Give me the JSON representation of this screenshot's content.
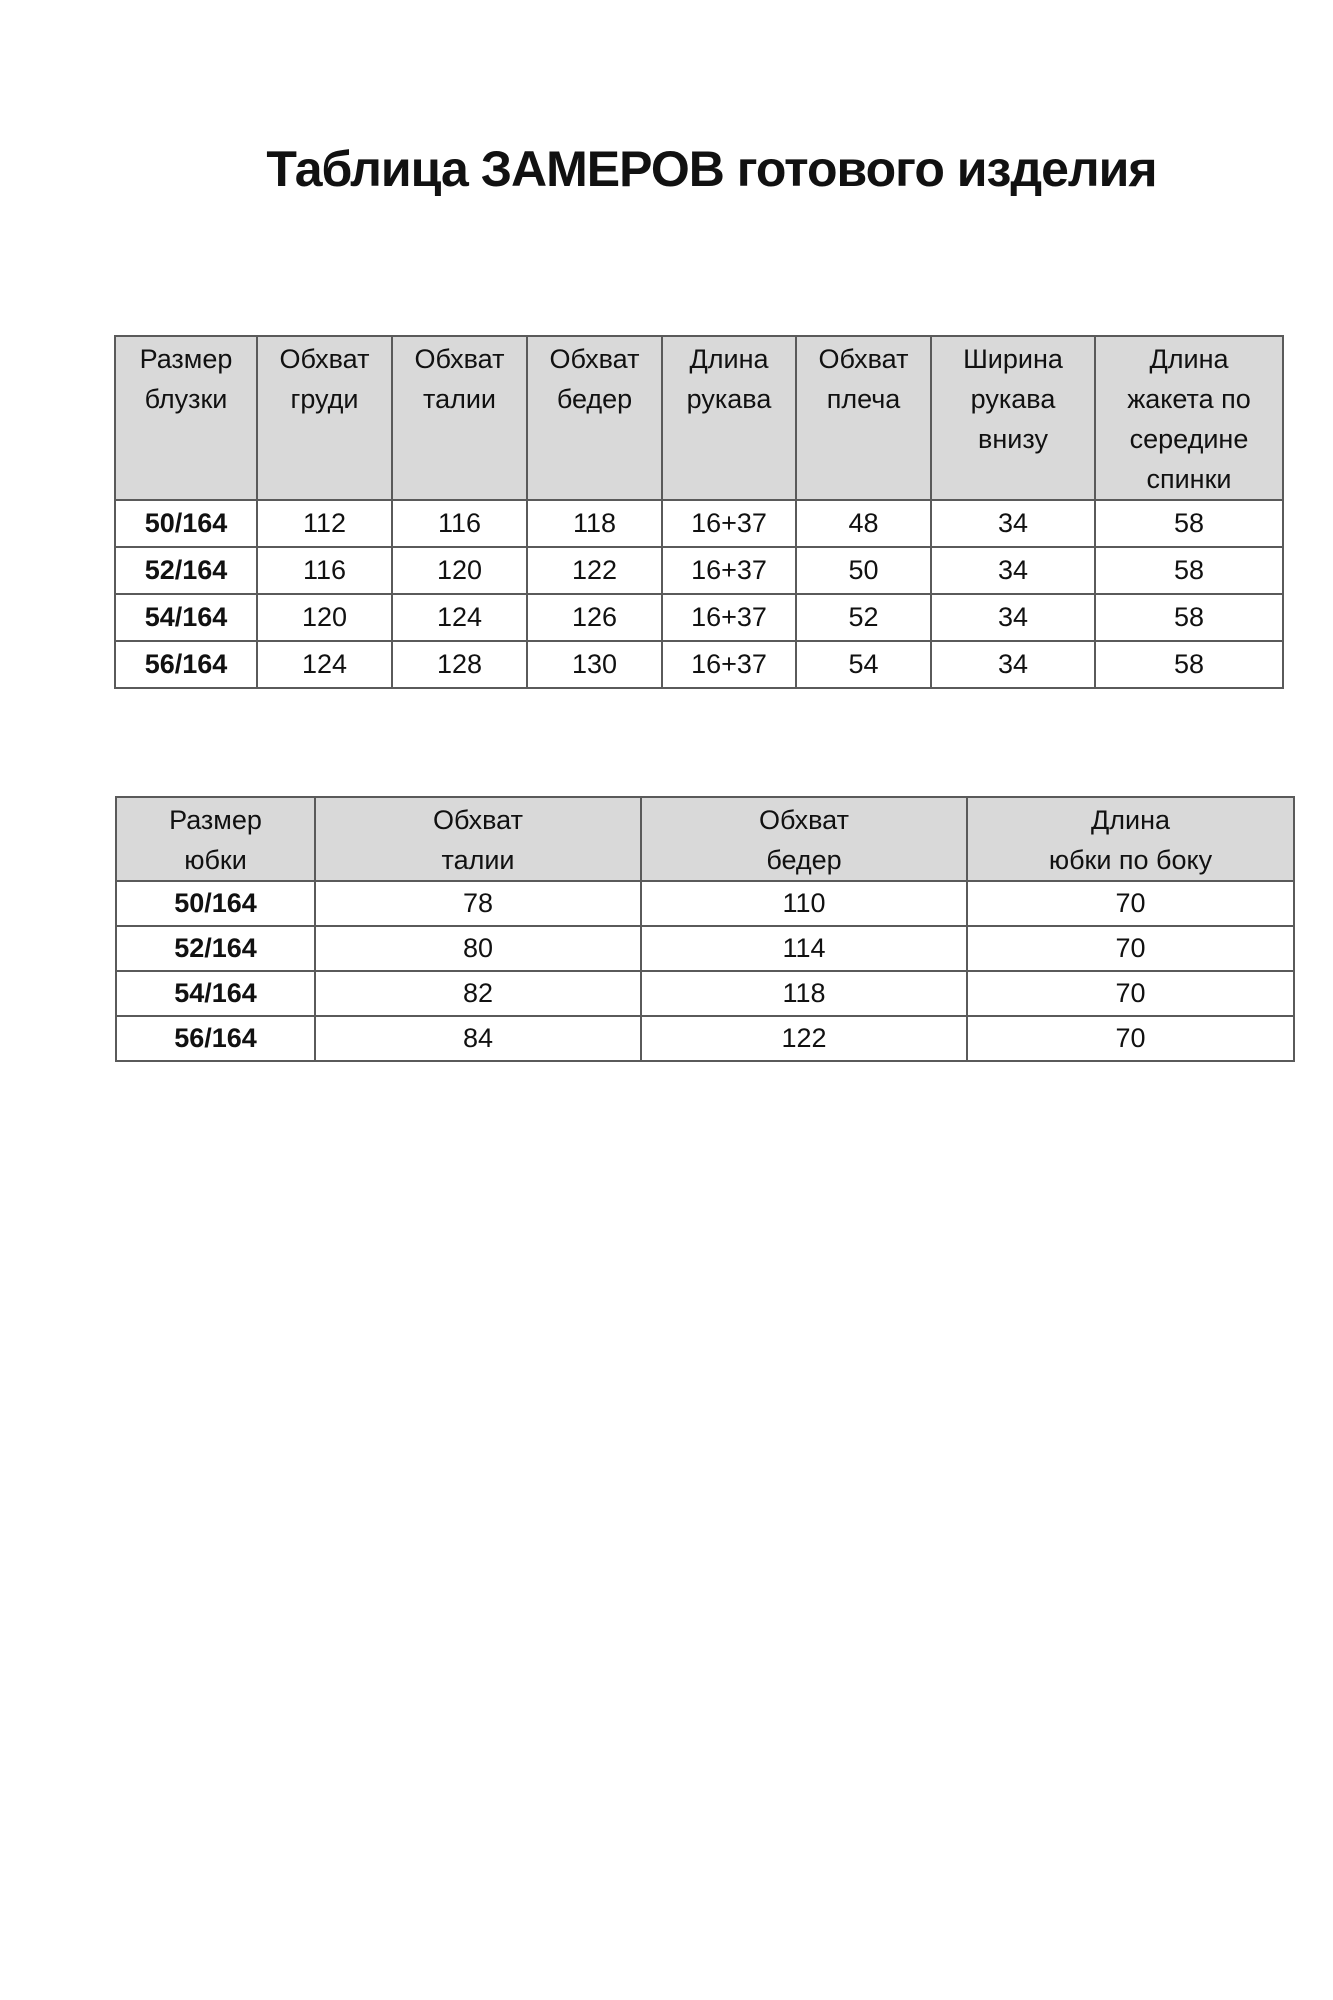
{
  "title": "Таблица ЗАМЕРОВ готового изделия",
  "blouse_table": {
    "headers": [
      [
        "Размер",
        "блузки"
      ],
      [
        "Обхват",
        "груди"
      ],
      [
        "Обхват",
        "талии"
      ],
      [
        "Обхват",
        "бедер"
      ],
      [
        "Длина",
        "рукава"
      ],
      [
        "Обхват",
        "плеча"
      ],
      [
        "Ширина",
        "рукава",
        "внизу"
      ],
      [
        "Длина",
        "жакета по",
        "середине",
        "спинки"
      ]
    ],
    "rows": [
      [
        "50/164",
        "112",
        "116",
        "118",
        "16+37",
        "48",
        "34",
        "58"
      ],
      [
        "52/164",
        "116",
        "120",
        "122",
        "16+37",
        "50",
        "34",
        "58"
      ],
      [
        "54/164",
        "120",
        "124",
        "126",
        "16+37",
        "52",
        "34",
        "58"
      ],
      [
        "56/164",
        "124",
        "128",
        "130",
        "16+37",
        "54",
        "34",
        "58"
      ]
    ]
  },
  "skirt_table": {
    "headers": [
      [
        "Размер",
        "юбки"
      ],
      [
        "Обхват",
        "талии"
      ],
      [
        "Обхват",
        "бедер"
      ],
      [
        "Длина",
        "юбки по боку"
      ]
    ],
    "rows": [
      [
        "50/164",
        "78",
        "110",
        "70"
      ],
      [
        "52/164",
        "80",
        "114",
        "70"
      ],
      [
        "54/164",
        "82",
        "118",
        "70"
      ],
      [
        "56/164",
        "84",
        "122",
        "70"
      ]
    ]
  },
  "colors": {
    "header_bg": "#d9d9d9",
    "border": "#5a5a5a"
  }
}
